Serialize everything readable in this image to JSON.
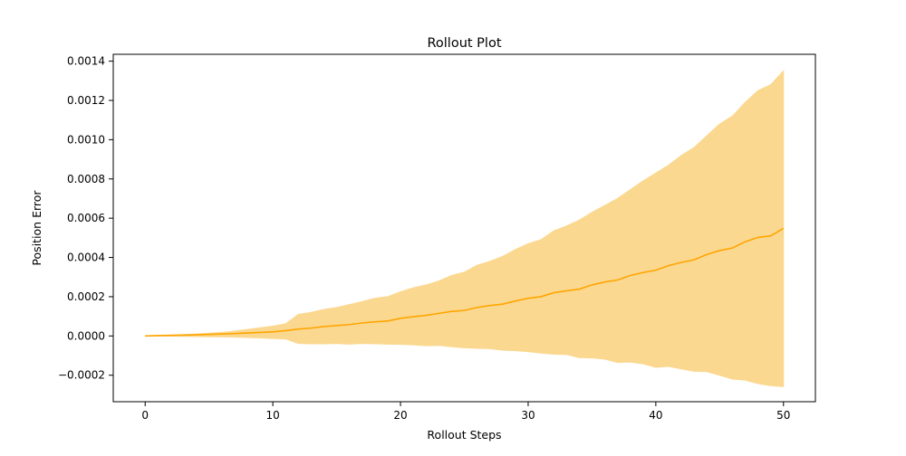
{
  "chart_data": {
    "type": "line",
    "title": "Rollout Plot",
    "xlabel": "Rollout Steps",
    "ylabel": "Position Error",
    "xlim": [
      -2.5,
      52.5
    ],
    "ylim": [
      -0.000335,
      0.001435
    ],
    "xticks": [
      0,
      10,
      20,
      30,
      40,
      50
    ],
    "xtick_labels": [
      "0",
      "10",
      "20",
      "30",
      "40",
      "50"
    ],
    "yticks": [
      -0.0002,
      0.0,
      0.0002,
      0.0004,
      0.0006,
      0.0008,
      0.001,
      0.0012,
      0.0014
    ],
    "ytick_labels": [
      "−0.0002",
      "0.0000",
      "0.0002",
      "0.0004",
      "0.0006",
      "0.0008",
      "0.0010",
      "0.0012",
      "0.0014"
    ],
    "grid": false,
    "legend": "none",
    "colors": {
      "line": "#ffa500",
      "band": "#fbd890"
    },
    "x": [
      0,
      1,
      2,
      3,
      4,
      5,
      6,
      7,
      8,
      9,
      10,
      11,
      12,
      13,
      14,
      15,
      16,
      17,
      18,
      19,
      20,
      21,
      22,
      23,
      24,
      25,
      26,
      27,
      28,
      29,
      30,
      31,
      32,
      33,
      34,
      35,
      36,
      37,
      38,
      39,
      40,
      41,
      42,
      43,
      44,
      45,
      46,
      47,
      48,
      49,
      50
    ],
    "series": [
      {
        "values": [
          0.0,
          2e-06,
          3e-06,
          4e-06,
          6e-06,
          8e-06,
          1e-05,
          1.2e-05,
          1.5e-05,
          1.8e-05,
          2.1e-05,
          2.7e-05,
          3.5e-05,
          4e-05,
          4.8e-05,
          5.3e-05,
          5.8e-05,
          6.6e-05,
          7.2e-05,
          7.6e-05,
          9e-05,
          9.8e-05,
          0.000105,
          0.000115,
          0.000125,
          0.00013,
          0.000145,
          0.000155,
          0.000162,
          0.000178,
          0.000192,
          0.0002,
          0.00022,
          0.00023,
          0.000238,
          0.00026,
          0.000275,
          0.000285,
          0.000308,
          0.000323,
          0.000335,
          0.000358,
          0.000375,
          0.000388,
          0.000415,
          0.000435,
          0.000448,
          0.00048,
          0.000502,
          0.00051,
          0.000548
        ],
        "lower": [
          0.0,
          -1e-06,
          -1e-06,
          -2e-06,
          -3e-06,
          -4e-06,
          -5e-06,
          -6e-06,
          -8e-06,
          -1e-05,
          -1.3e-05,
          -1.5e-05,
          -3.8e-05,
          -4e-05,
          -4e-05,
          -3.8e-05,
          -4.2e-05,
          -3.8e-05,
          -4e-05,
          -4.2e-05,
          -4.3e-05,
          -4.5e-05,
          -5e-05,
          -4.8e-05,
          -5.5e-05,
          -6e-05,
          -6.3e-05,
          -6.5e-05,
          -7.2e-05,
          -7.5e-05,
          -8e-05,
          -8.7e-05,
          -9.3e-05,
          -9.5e-05,
          -0.00011,
          -0.000112,
          -0.000118,
          -0.000135,
          -0.000133,
          -0.000142,
          -0.00016,
          -0.000155,
          -0.000168,
          -0.00018,
          -0.000182,
          -0.0002,
          -0.00022,
          -0.000225,
          -0.000243,
          -0.000253,
          -0.000258
        ],
        "upper": [
          0.0,
          3e-06,
          5e-06,
          7e-06,
          1e-05,
          1.4e-05,
          1.8e-05,
          2.5e-05,
          3.3e-05,
          4.2e-05,
          5e-05,
          6.2e-05,
          0.00011,
          0.00012,
          0.000135,
          0.000145,
          0.00016,
          0.000175,
          0.000192,
          0.0002,
          0.000225,
          0.000245,
          0.00026,
          0.00028,
          0.000308,
          0.000325,
          0.00036,
          0.00038,
          0.000405,
          0.00044,
          0.00047,
          0.00049,
          0.000535,
          0.00056,
          0.00059,
          0.00063,
          0.000665,
          0.0007,
          0.000745,
          0.00079,
          0.00083,
          0.00087,
          0.00092,
          0.00096,
          0.00102,
          0.00108,
          0.00112,
          0.00119,
          0.00125,
          0.00128,
          0.00135
        ]
      }
    ]
  }
}
